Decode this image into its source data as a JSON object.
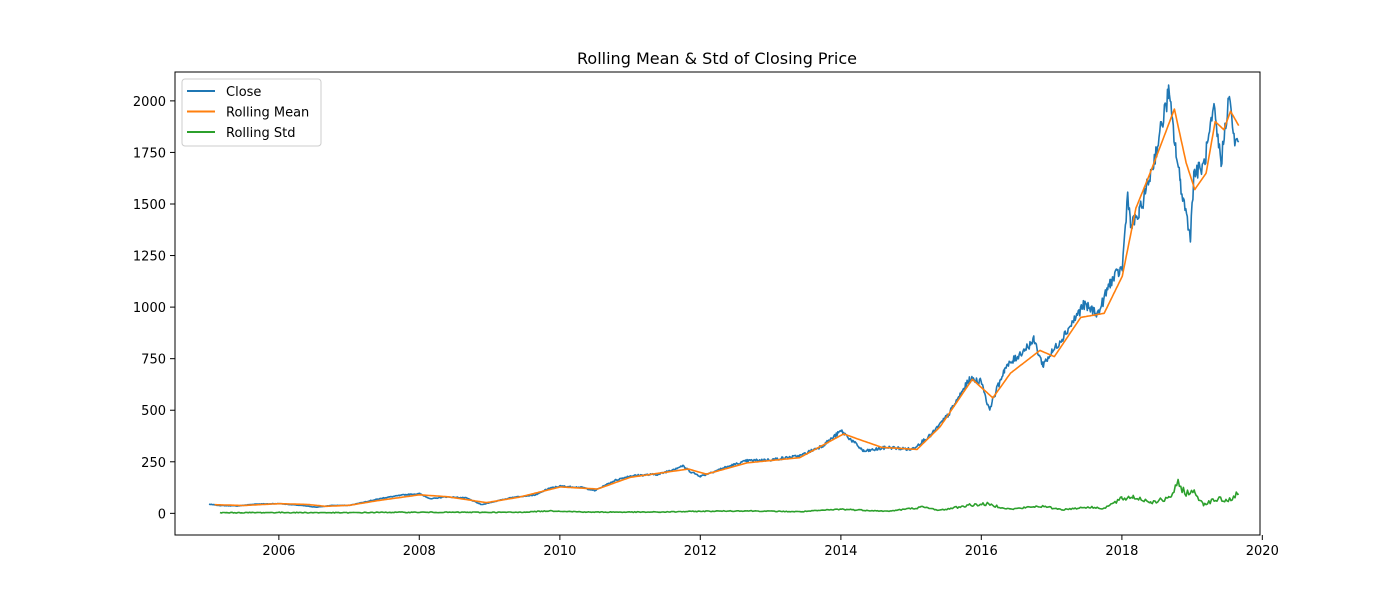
{
  "chart_data": {
    "type": "line",
    "title": "Rolling Mean & Std of Closing Price",
    "xlabel": "",
    "ylabel": "",
    "x_is_date": true,
    "xlim": [
      "2004-07-10",
      "2019-12-20"
    ],
    "ylim": [
      -105,
      2140
    ],
    "x_ticks": [
      "2006-01-01",
      "2008-01-01",
      "2010-01-01",
      "2012-01-01",
      "2014-01-01",
      "2016-01-01",
      "2018-01-01",
      "2020-01-01"
    ],
    "x_tick_labels": [
      "2006",
      "2008",
      "2010",
      "2012",
      "2014",
      "2016",
      "2018",
      "2020"
    ],
    "y_ticks": [
      0,
      250,
      500,
      750,
      1000,
      1250,
      1500,
      1750,
      2000
    ],
    "y_tick_labels": [
      "0",
      "250",
      "500",
      "750",
      "1000",
      "1250",
      "1500",
      "1750",
      "2000"
    ],
    "grid": false,
    "legend_position": "upper-left",
    "series": [
      {
        "name": "Close",
        "color": "#1f77b4",
        "points": [
          [
            "2005-01-03",
            44
          ],
          [
            "2005-03-01",
            38
          ],
          [
            "2005-06-01",
            36
          ],
          [
            "2005-09-01",
            45
          ],
          [
            "2006-01-03",
            47
          ],
          [
            "2006-05-01",
            38
          ],
          [
            "2006-07-15",
            30
          ],
          [
            "2006-10-01",
            38
          ],
          [
            "2007-01-03",
            39
          ],
          [
            "2007-04-15",
            60
          ],
          [
            "2007-07-01",
            75
          ],
          [
            "2007-10-15",
            90
          ],
          [
            "2008-01-03",
            95
          ],
          [
            "2008-03-01",
            70
          ],
          [
            "2008-05-15",
            80
          ],
          [
            "2008-09-01",
            75
          ],
          [
            "2008-11-20",
            42
          ],
          [
            "2009-01-03",
            52
          ],
          [
            "2009-05-01",
            78
          ],
          [
            "2009-09-01",
            90
          ],
          [
            "2009-11-01",
            120
          ],
          [
            "2010-01-03",
            132
          ],
          [
            "2010-05-01",
            125
          ],
          [
            "2010-07-01",
            110
          ],
          [
            "2010-10-15",
            160
          ],
          [
            "2011-01-03",
            182
          ],
          [
            "2011-06-01",
            190
          ],
          [
            "2011-10-01",
            230
          ],
          [
            "2011-11-15",
            200
          ],
          [
            "2012-01-03",
            180
          ],
          [
            "2012-05-01",
            220
          ],
          [
            "2012-09-01",
            255
          ],
          [
            "2013-01-03",
            260
          ],
          [
            "2013-06-01",
            278
          ],
          [
            "2013-10-01",
            330
          ],
          [
            "2014-01-03",
            400
          ],
          [
            "2014-05-01",
            300
          ],
          [
            "2014-09-01",
            320
          ],
          [
            "2015-01-03",
            310
          ],
          [
            "2015-04-15",
            380
          ],
          [
            "2015-07-15",
            480
          ],
          [
            "2015-11-01",
            650
          ],
          [
            "2016-01-03",
            640
          ],
          [
            "2016-02-10",
            502
          ],
          [
            "2016-05-01",
            700
          ],
          [
            "2016-10-01",
            840
          ],
          [
            "2016-11-15",
            720
          ],
          [
            "2017-01-03",
            780
          ],
          [
            "2017-04-01",
            900
          ],
          [
            "2017-06-15",
            1010
          ],
          [
            "2017-09-01",
            970
          ],
          [
            "2017-11-01",
            1120
          ],
          [
            "2018-01-03",
            1190
          ],
          [
            "2018-02-01",
            1560
          ],
          [
            "2018-02-15",
            1390
          ],
          [
            "2018-04-01",
            1450
          ],
          [
            "2018-06-15",
            1700
          ],
          [
            "2018-09-01",
            2039
          ],
          [
            "2018-10-10",
            1750
          ],
          [
            "2018-11-01",
            1600
          ],
          [
            "2018-12-24",
            1344
          ],
          [
            "2019-01-10",
            1650
          ],
          [
            "2019-03-01",
            1680
          ],
          [
            "2019-04-25",
            1950
          ],
          [
            "2019-06-01",
            1700
          ],
          [
            "2019-07-10",
            2020
          ],
          [
            "2019-08-15",
            1780
          ],
          [
            "2019-08-31",
            1800
          ]
        ]
      },
      {
        "name": "Rolling Mean",
        "color": "#ff7f0e",
        "points": [
          [
            "2005-02-01",
            42
          ],
          [
            "2005-07-01",
            38
          ],
          [
            "2006-01-03",
            47
          ],
          [
            "2006-06-01",
            43
          ],
          [
            "2006-09-01",
            34
          ],
          [
            "2007-01-03",
            39
          ],
          [
            "2007-06-01",
            62
          ],
          [
            "2008-01-03",
            90
          ],
          [
            "2008-06-01",
            80
          ],
          [
            "2008-12-15",
            52
          ],
          [
            "2009-06-01",
            78
          ],
          [
            "2010-01-03",
            128
          ],
          [
            "2010-07-15",
            118
          ],
          [
            "2011-01-03",
            175
          ],
          [
            "2011-11-01",
            215
          ],
          [
            "2012-02-01",
            190
          ],
          [
            "2012-09-01",
            245
          ],
          [
            "2013-06-01",
            270
          ],
          [
            "2014-01-15",
            385
          ],
          [
            "2014-08-01",
            320
          ],
          [
            "2015-02-01",
            310
          ],
          [
            "2015-06-01",
            420
          ],
          [
            "2015-11-15",
            650
          ],
          [
            "2016-03-01",
            560
          ],
          [
            "2016-06-01",
            680
          ],
          [
            "2016-11-01",
            790
          ],
          [
            "2017-01-15",
            760
          ],
          [
            "2017-06-01",
            950
          ],
          [
            "2017-10-01",
            970
          ],
          [
            "2018-01-03",
            1150
          ],
          [
            "2018-03-15",
            1480
          ],
          [
            "2018-06-01",
            1660
          ],
          [
            "2018-10-01",
            1960
          ],
          [
            "2018-12-01",
            1700
          ],
          [
            "2019-01-15",
            1570
          ],
          [
            "2019-03-15",
            1650
          ],
          [
            "2019-05-01",
            1900
          ],
          [
            "2019-06-15",
            1860
          ],
          [
            "2019-07-20",
            1950
          ],
          [
            "2019-08-31",
            1880
          ]
        ]
      },
      {
        "name": "Rolling Std",
        "color": "#2ca02c",
        "points": [
          [
            "2005-03-01",
            3
          ],
          [
            "2006-01-03",
            4
          ],
          [
            "2007-01-03",
            3
          ],
          [
            "2007-08-01",
            5
          ],
          [
            "2008-06-01",
            5
          ],
          [
            "2009-06-01",
            5
          ],
          [
            "2009-11-15",
            12
          ],
          [
            "2010-06-01",
            6
          ],
          [
            "2011-06-01",
            6
          ],
          [
            "2012-01-03",
            10
          ],
          [
            "2012-09-01",
            12
          ],
          [
            "2013-06-01",
            8
          ],
          [
            "2014-01-03",
            20
          ],
          [
            "2014-09-01",
            10
          ],
          [
            "2015-03-01",
            30
          ],
          [
            "2015-06-01",
            15
          ],
          [
            "2015-11-01",
            40
          ],
          [
            "2016-02-01",
            45
          ],
          [
            "2016-06-01",
            20
          ],
          [
            "2016-11-01",
            35
          ],
          [
            "2017-03-01",
            18
          ],
          [
            "2017-07-01",
            30
          ],
          [
            "2017-10-01",
            25
          ],
          [
            "2018-01-01",
            70
          ],
          [
            "2018-03-01",
            80
          ],
          [
            "2018-06-01",
            55
          ],
          [
            "2018-09-01",
            70
          ],
          [
            "2018-10-20",
            140
          ],
          [
            "2018-12-01",
            100
          ],
          [
            "2019-01-15",
            100
          ],
          [
            "2019-03-01",
            45
          ],
          [
            "2019-05-15",
            70
          ],
          [
            "2019-07-01",
            60
          ],
          [
            "2019-08-31",
            95
          ]
        ]
      }
    ]
  }
}
